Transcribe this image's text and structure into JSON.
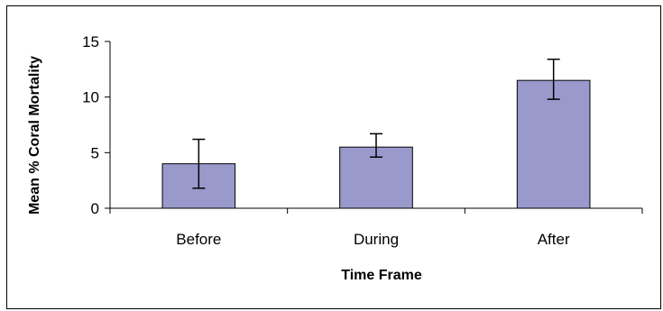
{
  "chart_data": {
    "type": "bar",
    "title": "",
    "xlabel": "Time Frame",
    "ylabel": "Mean % Coral Mortality",
    "categories": [
      "Before",
      "During",
      "After"
    ],
    "values": [
      4.0,
      5.5,
      11.5
    ],
    "error_bars": {
      "low": [
        1.8,
        4.6,
        9.8
      ],
      "high": [
        6.2,
        6.7,
        13.4
      ]
    },
    "yticks": [
      "0",
      "5",
      "10",
      "15"
    ],
    "ylim": [
      0,
      15
    ],
    "grid": false,
    "legend": "none",
    "colors": {
      "bar_fill": "#9999cc",
      "bar_stroke": "#000000"
    }
  }
}
